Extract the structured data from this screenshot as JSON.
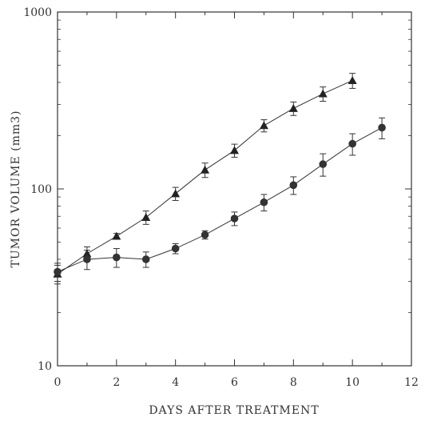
{
  "chart_data": {
    "type": "line",
    "title": "",
    "xlabel": "DAYS AFTER TREATMENT",
    "ylabel": "TUMOR VOLUME (mm3)",
    "xlim": [
      0,
      12
    ],
    "ylim": [
      10,
      1000
    ],
    "yscale": "log",
    "grid": false,
    "x_ticks": [
      0,
      2,
      4,
      6,
      8,
      10,
      12
    ],
    "x_tick_labels": [
      "0",
      "2",
      "4",
      "6",
      "8",
      "10",
      "12"
    ],
    "y_ticks": [
      10,
      100,
      1000
    ],
    "y_tick_labels": [
      "10",
      "100",
      "1000"
    ],
    "series": [
      {
        "marker": "triangle",
        "x": [
          0,
          1,
          2,
          3,
          4,
          5,
          6,
          7,
          8,
          9,
          10
        ],
        "y": [
          33,
          43,
          54,
          69,
          94,
          128,
          165,
          228,
          285,
          345,
          410
        ],
        "err": [
          4,
          4,
          2,
          6,
          8,
          12,
          14,
          18,
          25,
          32,
          40
        ]
      },
      {
        "marker": "circle",
        "x": [
          0,
          1,
          2,
          3,
          4,
          5,
          6,
          7,
          8,
          9,
          10,
          11
        ],
        "y": [
          34,
          40,
          41,
          40,
          46,
          55,
          68,
          84,
          105,
          138,
          180,
          222
        ],
        "err": [
          4,
          5,
          5,
          4,
          3,
          3,
          6,
          9,
          12,
          20,
          25,
          30
        ]
      }
    ]
  }
}
